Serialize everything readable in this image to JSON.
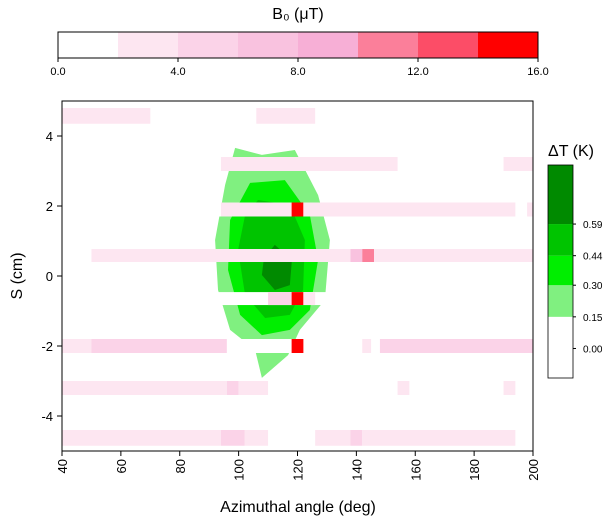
{
  "chart_data": {
    "type": "heatmap",
    "xlabel": "Azimuthal angle (deg)",
    "ylabel": "S (cm)",
    "xlim": [
      40,
      200
    ],
    "ylim": [
      -5,
      5
    ],
    "xticks": [
      40,
      60,
      80,
      100,
      120,
      140,
      160,
      180,
      200
    ],
    "yticks": [
      -4,
      -2,
      0,
      2,
      4
    ],
    "colorbar": {
      "title": "B₀ (μT)",
      "levels": [
        0,
        2,
        4,
        6,
        8,
        10,
        12,
        14,
        16
      ],
      "colors": [
        "#ffffff",
        "#fde6f1",
        "#fbd3e8",
        "#f9c2df",
        "#f7afd6",
        "#fb7f9a",
        "#fc4d67",
        "#ff0000"
      ],
      "ticks": [
        {
          "value": 0,
          "label": "0.0"
        },
        {
          "value": 4,
          "label": "4.0"
        },
        {
          "value": 8,
          "label": "8.0"
        },
        {
          "value": 12,
          "label": "12.0"
        },
        {
          "value": 16,
          "label": "16.0"
        }
      ]
    },
    "rows": [
      {
        "s": [
          4.35,
          4.8
        ],
        "cells": [
          [
            40,
            70,
            3
          ],
          [
            106,
            126,
            3
          ]
        ]
      },
      {
        "s": [
          3.0,
          3.4
        ],
        "cells": [
          [
            94,
            154,
            3
          ],
          [
            190,
            200,
            3
          ]
        ]
      },
      {
        "s": [
          1.7,
          2.1
        ],
        "cells": [
          [
            94,
            118,
            3
          ],
          [
            118,
            122,
            15
          ],
          [
            122,
            194,
            3
          ],
          [
            198,
            200,
            3
          ]
        ]
      },
      {
        "s": [
          0.4,
          0.77
        ],
        "cells": [
          [
            50,
            138,
            3
          ],
          [
            138,
            142,
            7
          ],
          [
            142,
            146,
            11
          ],
          [
            146,
            200,
            3
          ]
        ]
      },
      {
        "s": [
          -0.83,
          -0.46
        ],
        "cells": [
          [
            110,
            118,
            5
          ],
          [
            118,
            122,
            15
          ],
          [
            122,
            126,
            3
          ]
        ]
      },
      {
        "s": [
          -2.2,
          -1.8
        ],
        "cells": [
          [
            40,
            50,
            3
          ],
          [
            50,
            96,
            5
          ],
          [
            118,
            122,
            15
          ],
          [
            142,
            145,
            3
          ],
          [
            148,
            200,
            5
          ]
        ]
      },
      {
        "s": [
          -3.4,
          -3.0
        ],
        "cells": [
          [
            40,
            96,
            3
          ],
          [
            96,
            100,
            5
          ],
          [
            100,
            110,
            3
          ],
          [
            154,
            158,
            3
          ],
          [
            190,
            194,
            3
          ]
        ]
      },
      {
        "s": [
          -4.85,
          -4.4
        ],
        "cells": [
          [
            40,
            94,
            3
          ],
          [
            94,
            102,
            5
          ],
          [
            102,
            110,
            3
          ],
          [
            126,
            138,
            3
          ],
          [
            138,
            142,
            5
          ],
          [
            142,
            194,
            3
          ]
        ]
      }
    ],
    "contour_colorbar": {
      "title": "ΔT (K)",
      "zlim": [
        -0.14,
        0.87
      ],
      "levels": [
        -0.14,
        0.15,
        0.3,
        0.44,
        0.59,
        0.87
      ],
      "colors": [
        "#ffffff",
        "#80f080",
        "#00ee00",
        "#00c400",
        "#008a00"
      ],
      "ticks": [
        {
          "value": 0,
          "label": "0.00"
        },
        0.15,
        {
          "value": 0.3,
          "label": "0.30"
        },
        0.44,
        0.59
      ]
    },
    "contours": [
      {
        "level": 0.15,
        "x": [
          98.8,
          107.9,
          119.1,
          127.0,
          131.0,
          129.3,
          120.8,
          116.8,
          107.9,
          105.6,
          97.1,
          93.0,
          92.0,
          95.4
        ],
        "y": [
          3.66,
          3.46,
          3.6,
          2.31,
          1.03,
          -0.69,
          -1.54,
          -2.26,
          -2.91,
          -2.11,
          -1.54,
          -0.4,
          1.03,
          2.6
        ]
      },
      {
        "level": 0.3,
        "x": [
          103.9,
          115.7,
          124.2,
          127.0,
          124.2,
          117.4,
          107.9,
          100.5,
          96.4,
          97.1
        ],
        "y": [
          2.66,
          2.74,
          1.74,
          0.46,
          -0.97,
          -1.54,
          -1.69,
          -1.11,
          0.17,
          1.6
        ]
      },
      {
        "level": 0.44,
        "x": [
          106.6,
          117.4,
          122.5,
          121.9,
          117.4,
          109.0,
          102.2,
          99.8,
          102.2
        ],
        "y": [
          2.17,
          2.03,
          1.03,
          -0.4,
          -1.11,
          -1.2,
          -0.54,
          0.74,
          1.74
        ]
      },
      {
        "level": 0.59,
        "x": [
          112.3,
          118.1,
          117.4,
          112.3,
          107.9,
          108.6
        ],
        "y": [
          0.89,
          0.46,
          -0.26,
          -0.4,
          0.03,
          0.51
        ]
      }
    ]
  }
}
